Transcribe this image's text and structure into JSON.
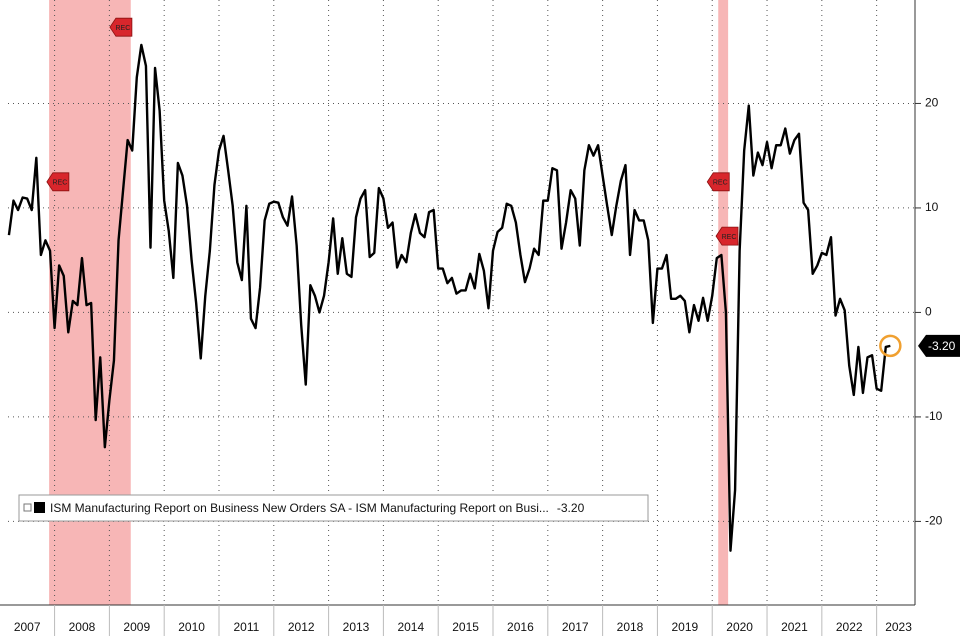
{
  "chart_data": {
    "type": "line",
    "series": [
      {
        "name": "ISM Manufacturing Report on Business New Orders SA - ISM Manufacturing Report on Busi...",
        "color": "#000000",
        "values": [
          7.4,
          10.7,
          9.8,
          11.0,
          10.9,
          9.8,
          14.8,
          5.5,
          6.9,
          5.9,
          -1.5,
          4.5,
          3.5,
          -1.9,
          1.1,
          0.7,
          5.2,
          0.7,
          0.9,
          -10.3,
          -4.3,
          -12.9,
          -8.4,
          -4.6,
          6.9,
          11.7,
          16.5,
          15.5,
          22.5,
          25.6,
          23.6,
          6.2,
          23.4,
          19.3,
          10.7,
          7.8,
          3.3,
          14.3,
          13.1,
          10.2,
          5.0,
          0.9,
          -4.4,
          1.6,
          5.9,
          12.2,
          15.5,
          16.9,
          13.6,
          10.2,
          4.8,
          3.1,
          10.2,
          -0.6,
          -1.5,
          2.4,
          8.8,
          10.4,
          10.6,
          10.5,
          9.1,
          8.3,
          11.1,
          6.4,
          -1.2,
          -6.9,
          2.6,
          1.6,
          0,
          1.6,
          4.8,
          9.0,
          3.7,
          7.1,
          3.7,
          3.4,
          9.1,
          10.9,
          11.7,
          5.3,
          5.7,
          11.9,
          10.9,
          8.1,
          8.6,
          4.3,
          5.5,
          4.8,
          7.6,
          9.4,
          7.6,
          7.2,
          9.6,
          9.8,
          4.2,
          4.2,
          2.8,
          3.3,
          1.8,
          2.1,
          2.1,
          3.7,
          2.3,
          5.6,
          4.0,
          0.4,
          5.9,
          7.7,
          8.1,
          10.4,
          10.2,
          8.6,
          5.5,
          2.9,
          4.2,
          6.1,
          5.5,
          10.7,
          10.7,
          13.8,
          13.6,
          6.1,
          8.6,
          11.7,
          10.9,
          6.4,
          13.6,
          16.0,
          15.0,
          16.0,
          13.1,
          10.2,
          7.4,
          10.2,
          12.6,
          14.1,
          5.5,
          9.8,
          8.8,
          8.8,
          6.9,
          -1.0,
          4.2,
          4.2,
          5.5,
          1.3,
          1.3,
          1.6,
          1.1,
          -1.9,
          0.7,
          -0.8,
          1.4,
          -0.8,
          1.6,
          5.2,
          5.5,
          0,
          -22.8,
          -17.0,
          5.9,
          15.5,
          19.8,
          13.1,
          15.3,
          14.1,
          16.3,
          13.8,
          16.0,
          16.0,
          17.6,
          15.2,
          16.5,
          17.1,
          10.5,
          9.8,
          3.7,
          4.5,
          5.7,
          5.5,
          7.2,
          -0.3,
          1.3,
          0.2,
          -5.1,
          -7.9,
          -3.3,
          -7.7,
          -4.3,
          -4.1,
          -7.3,
          -7.5,
          -3.3,
          -3.2
        ],
        "last_label": "-3.20"
      }
    ],
    "x": [
      2007.167,
      2007.25,
      2007.333,
      2007.417,
      2007.5,
      2007.583,
      2007.667,
      2007.75,
      2007.833,
      2007.917,
      2008,
      2008.083,
      2008.167,
      2008.25,
      2008.333,
      2008.417,
      2008.5,
      2008.583,
      2008.667,
      2008.75,
      2008.833,
      2008.917,
      2009,
      2009.083,
      2009.167,
      2009.25,
      2009.333,
      2009.417,
      2009.5,
      2009.583,
      2009.667,
      2009.75,
      2009.833,
      2009.917,
      2010,
      2010.083,
      2010.167,
      2010.25,
      2010.333,
      2010.417,
      2010.5,
      2010.583,
      2010.667,
      2010.75,
      2010.833,
      2010.917,
      2011,
      2011.083,
      2011.167,
      2011.25,
      2011.333,
      2011.417,
      2011.5,
      2011.583,
      2011.667,
      2011.75,
      2011.833,
      2011.917,
      2012,
      2012.083,
      2012.167,
      2012.25,
      2012.333,
      2012.417,
      2012.5,
      2012.583,
      2012.667,
      2012.75,
      2012.833,
      2012.917,
      2013,
      2013.083,
      2013.167,
      2013.25,
      2013.333,
      2013.417,
      2013.5,
      2013.583,
      2013.667,
      2013.75,
      2013.833,
      2013.917,
      2014,
      2014.083,
      2014.167,
      2014.25,
      2014.333,
      2014.417,
      2014.5,
      2014.583,
      2014.667,
      2014.75,
      2014.833,
      2014.917,
      2015,
      2015.083,
      2015.167,
      2015.25,
      2015.333,
      2015.417,
      2015.5,
      2015.583,
      2015.667,
      2015.75,
      2015.833,
      2015.917,
      2016,
      2016.083,
      2016.167,
      2016.25,
      2016.333,
      2016.417,
      2016.5,
      2016.583,
      2016.667,
      2016.75,
      2016.833,
      2016.917,
      2017,
      2017.083,
      2017.167,
      2017.25,
      2017.333,
      2017.417,
      2017.5,
      2017.583,
      2017.667,
      2017.75,
      2017.833,
      2017.917,
      2018,
      2018.083,
      2018.167,
      2018.25,
      2018.333,
      2018.417,
      2018.5,
      2018.583,
      2018.667,
      2018.75,
      2018.833,
      2018.917,
      2019,
      2019.083,
      2019.167,
      2019.25,
      2019.333,
      2019.417,
      2019.5,
      2019.583,
      2019.667,
      2019.75,
      2019.833,
      2019.917,
      2020,
      2020.083,
      2020.167,
      2020.25,
      2020.333,
      2020.417,
      2020.5,
      2020.583,
      2020.667,
      2020.75,
      2020.833,
      2020.917,
      2021,
      2021.083,
      2021.167,
      2021.25,
      2021.333,
      2021.417,
      2021.5,
      2021.583,
      2021.667,
      2021.75,
      2021.833,
      2021.917,
      2022,
      2022.083,
      2022.167,
      2022.25,
      2022.333,
      2022.417,
      2022.5,
      2022.583,
      2022.667,
      2022.75,
      2022.833,
      2022.917,
      2023,
      2023.083,
      2023.167,
      2023.25
    ],
    "xlim": [
      2007.15,
      2023.7
    ],
    "xticks": [
      {
        "value": 2007.5,
        "label": "2007"
      },
      {
        "value": 2008.5,
        "label": "2008"
      },
      {
        "value": 2009.5,
        "label": "2009"
      },
      {
        "value": 2010.5,
        "label": "2010"
      },
      {
        "value": 2011.5,
        "label": "2011"
      },
      {
        "value": 2012.5,
        "label": "2012"
      },
      {
        "value": 2013.5,
        "label": "2013"
      },
      {
        "value": 2014.5,
        "label": "2014"
      },
      {
        "value": 2015.5,
        "label": "2015"
      },
      {
        "value": 2016.5,
        "label": "2016"
      },
      {
        "value": 2017.5,
        "label": "2017"
      },
      {
        "value": 2018.5,
        "label": "2018"
      },
      {
        "value": 2019.5,
        "label": "2019"
      },
      {
        "value": 2020.5,
        "label": "2020"
      },
      {
        "value": 2021.5,
        "label": "2021"
      },
      {
        "value": 2022.5,
        "label": "2022"
      },
      {
        "value": 2023.4,
        "label": "2023"
      }
    ],
    "xgrid": [
      2008,
      2009,
      2010,
      2011,
      2012,
      2013,
      2014,
      2015,
      2016,
      2017,
      2018,
      2019,
      2020,
      2021,
      2022,
      2023
    ],
    "ylim": [
      -28,
      29.9
    ],
    "yticks": [
      -20,
      -10,
      0,
      10,
      20
    ],
    "grid": true,
    "recessions": [
      [
        2007.9,
        2009.39
      ],
      [
        2020.11,
        2020.29
      ]
    ],
    "annotations": [
      {
        "text": "REC",
        "x": 2008.06,
        "y": 12.5
      },
      {
        "text": "REC",
        "x": 2009.21,
        "y": 27.3
      },
      {
        "text": "REC",
        "x": 2020.11,
        "y": 12.5
      },
      {
        "text": "REC",
        "x": 2020.27,
        "y": 7.3
      }
    ],
    "legend": "bottom-left"
  }
}
